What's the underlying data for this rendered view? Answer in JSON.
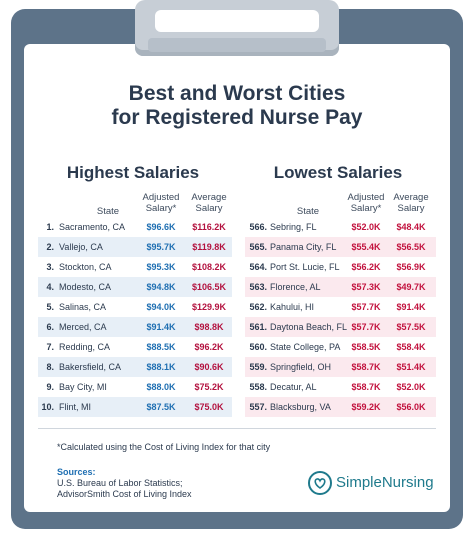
{
  "title_line1": "Best and Worst Cities",
  "title_line2": "for Registered Nurse Pay",
  "highest": {
    "heading": "Highest Salaries",
    "col_state": "State",
    "col_adjusted": [
      "Adjusted",
      "Salary*"
    ],
    "col_average": [
      "Average",
      "Salary"
    ],
    "rows": [
      {
        "rank": "1.",
        "city": "Sacramento, CA",
        "adjusted": "$96.6K",
        "average": "$116.2K"
      },
      {
        "rank": "2.",
        "city": "Vallejo, CA",
        "adjusted": "$95.7K",
        "average": "$119.8K"
      },
      {
        "rank": "3.",
        "city": "Stockton, CA",
        "adjusted": "$95.3K",
        "average": "$108.2K"
      },
      {
        "rank": "4.",
        "city": "Modesto, CA",
        "adjusted": "$94.8K",
        "average": "$106.5K"
      },
      {
        "rank": "5.",
        "city": "Salinas, CA",
        "adjusted": "$94.0K",
        "average": "$129.9K"
      },
      {
        "rank": "6.",
        "city": "Merced, CA",
        "adjusted": "$91.4K",
        "average": "$98.8K"
      },
      {
        "rank": "7.",
        "city": "Redding, CA",
        "adjusted": "$88.5K",
        "average": "$96.2K"
      },
      {
        "rank": "8.",
        "city": "Bakersfield, CA",
        "adjusted": "$88.1K",
        "average": "$90.6K"
      },
      {
        "rank": "9.",
        "city": "Bay City, MI",
        "adjusted": "$88.0K",
        "average": "$75.2K"
      },
      {
        "rank": "10.",
        "city": "Flint, MI",
        "adjusted": "$87.5K",
        "average": "$75.0K"
      }
    ]
  },
  "lowest": {
    "heading": "Lowest Salaries",
    "col_state": "State",
    "col_adjusted": [
      "Adjusted",
      "Salary*"
    ],
    "col_average": [
      "Average",
      "Salary"
    ],
    "rows": [
      {
        "rank": "566.",
        "city": "Sebring, FL",
        "adjusted": "$52.0K",
        "average": "$48.4K"
      },
      {
        "rank": "565.",
        "city": "Panama City, FL",
        "adjusted": "$55.4K",
        "average": "$56.5K"
      },
      {
        "rank": "564.",
        "city": "Port St. Lucie, FL",
        "adjusted": "$56.2K",
        "average": "$56.9K"
      },
      {
        "rank": "563.",
        "city": "Florence, AL",
        "adjusted": "$57.3K",
        "average": "$49.7K"
      },
      {
        "rank": "562.",
        "city": "Kahului, HI",
        "adjusted": "$57.7K",
        "average": "$91.4K"
      },
      {
        "rank": "561.",
        "city": "Daytona Beach, FL",
        "adjusted": "$57.7K",
        "average": "$57.5K"
      },
      {
        "rank": "560.",
        "city": "State College, PA",
        "adjusted": "$58.5K",
        "average": "$58.4K"
      },
      {
        "rank": "559.",
        "city": "Springfield, OH",
        "adjusted": "$58.7K",
        "average": "$51.4K"
      },
      {
        "rank": "558.",
        "city": "Decatur, AL",
        "adjusted": "$58.7K",
        "average": "$52.0K"
      },
      {
        "rank": "557.",
        "city": "Blacksburg, VA",
        "adjusted": "$59.2K",
        "average": "$56.0K"
      }
    ]
  },
  "footnote": "*Calculated using the Cost of Living Index for that city",
  "sources_label": "Sources:",
  "sources": [
    "U.S. Bureau of Labor Statistics;",
    "AdvisorSmith Cost of Living Index"
  ],
  "logo_text": "SimpleNursing",
  "logo_icon": "heart-stethoscope-icon",
  "colors": {
    "board": "#5d7389",
    "title": "#2b3a4e",
    "adjusted_high": "#1f6fb2",
    "low_values": "#c2123e",
    "brand": "#1f7a8c"
  }
}
